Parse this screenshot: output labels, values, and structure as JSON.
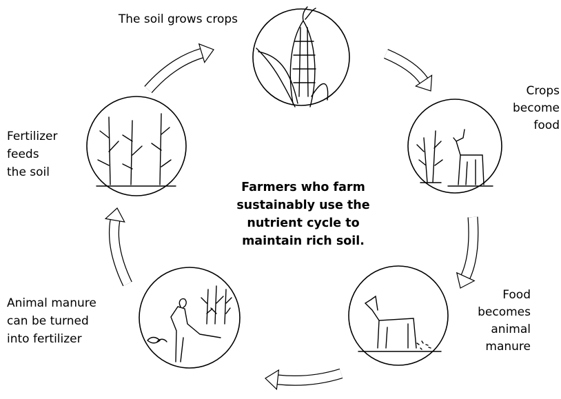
{
  "center_text": {
    "lines": [
      "Farmers who farm",
      "sustainably use the",
      "nutrient cycle to",
      "maintain rich soil."
    ]
  },
  "nodes": [
    {
      "label_lines": [
        "The soil grows crops"
      ]
    },
    {
      "label_lines": [
        "Crops",
        "become",
        "food"
      ]
    },
    {
      "label_lines": [
        "Food",
        "becomes",
        "animal",
        "manure"
      ]
    },
    {
      "label_lines": [
        "Animal manure",
        "can be turned",
        "into fertilizer"
      ]
    },
    {
      "label_lines": [
        "Fertilizer",
        "feeds",
        "the soil"
      ]
    }
  ]
}
